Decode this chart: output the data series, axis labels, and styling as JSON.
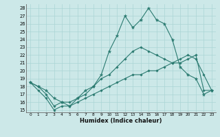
{
  "x": [
    0,
    1,
    2,
    3,
    4,
    5,
    6,
    7,
    8,
    9,
    10,
    11,
    12,
    13,
    14,
    15,
    16,
    17,
    18,
    19,
    20,
    21,
    22,
    23
  ],
  "line1": [
    18.5,
    18.0,
    17.5,
    16.5,
    16.0,
    15.5,
    16.5,
    17.5,
    18.0,
    19.5,
    22.5,
    24.5,
    27.0,
    25.5,
    26.5,
    28.0,
    26.5,
    26.0,
    24.0,
    20.5,
    19.5,
    19.0,
    17.0,
    17.5
  ],
  "line2": [
    18.5,
    18.0,
    17.0,
    15.5,
    16.0,
    16.0,
    16.5,
    17.0,
    18.0,
    19.0,
    19.5,
    20.5,
    21.5,
    22.5,
    23.0,
    22.5,
    22.0,
    21.5,
    21.0,
    21.5,
    22.0,
    21.5,
    19.5,
    17.5
  ],
  "line3": [
    18.5,
    17.5,
    16.5,
    15.0,
    15.5,
    15.5,
    16.0,
    16.5,
    17.0,
    17.5,
    18.0,
    18.5,
    19.0,
    19.5,
    19.5,
    20.0,
    20.0,
    20.5,
    21.0,
    21.0,
    21.5,
    22.0,
    17.5,
    17.5
  ],
  "bg_color": "#cce8e8",
  "grid_color": "#aad4d4",
  "line_color": "#2a7a70",
  "xlabel": "Humidex (Indice chaleur)",
  "ylim_min": 15,
  "ylim_max": 28,
  "yticks": [
    15,
    16,
    17,
    18,
    19,
    20,
    21,
    22,
    23,
    24,
    25,
    26,
    27,
    28
  ],
  "xlim_min": -0.5,
  "xlim_max": 23.5,
  "xticks": [
    0,
    1,
    2,
    3,
    4,
    5,
    6,
    7,
    8,
    9,
    10,
    11,
    12,
    13,
    14,
    15,
    16,
    17,
    18,
    19,
    20,
    21,
    22,
    23
  ]
}
